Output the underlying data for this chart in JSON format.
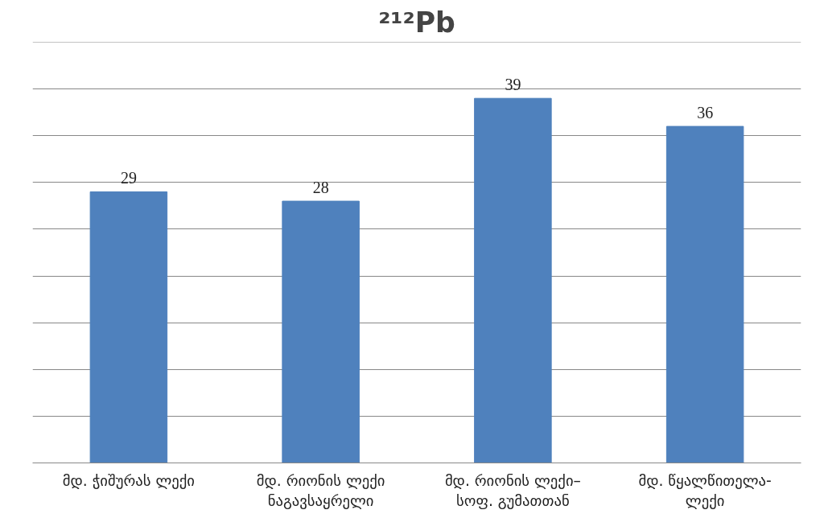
{
  "chart_data": {
    "type": "bar",
    "title": "²¹²Pb",
    "categories": [
      "მდ. ჭიშურას ლექი",
      "მდ. რიონის ლექი\nნაგავსაყრელი",
      "მდ. რიონის ლექი–\nსოფ. გუმათთან",
      "მდ. წყალწითელა-\nლექი"
    ],
    "values": [
      29,
      28,
      39,
      36
    ],
    "color": "#4f81bd",
    "data_labels": true,
    "ylim": [
      0,
      45
    ],
    "yticks": [
      {
        "value": 0,
        "label": null
      },
      {
        "value": 5,
        "label": null
      },
      {
        "value": 10,
        "label": null
      },
      {
        "value": 15,
        "label": null
      },
      {
        "value": 20,
        "label": null
      },
      {
        "value": 25,
        "label": null
      },
      {
        "value": 30,
        "label": null
      },
      {
        "value": 35,
        "label": null
      },
      {
        "value": 40,
        "label": null
      },
      {
        "value": 45,
        "label": null
      }
    ],
    "tick_labels": "x",
    "grid": "y"
  }
}
